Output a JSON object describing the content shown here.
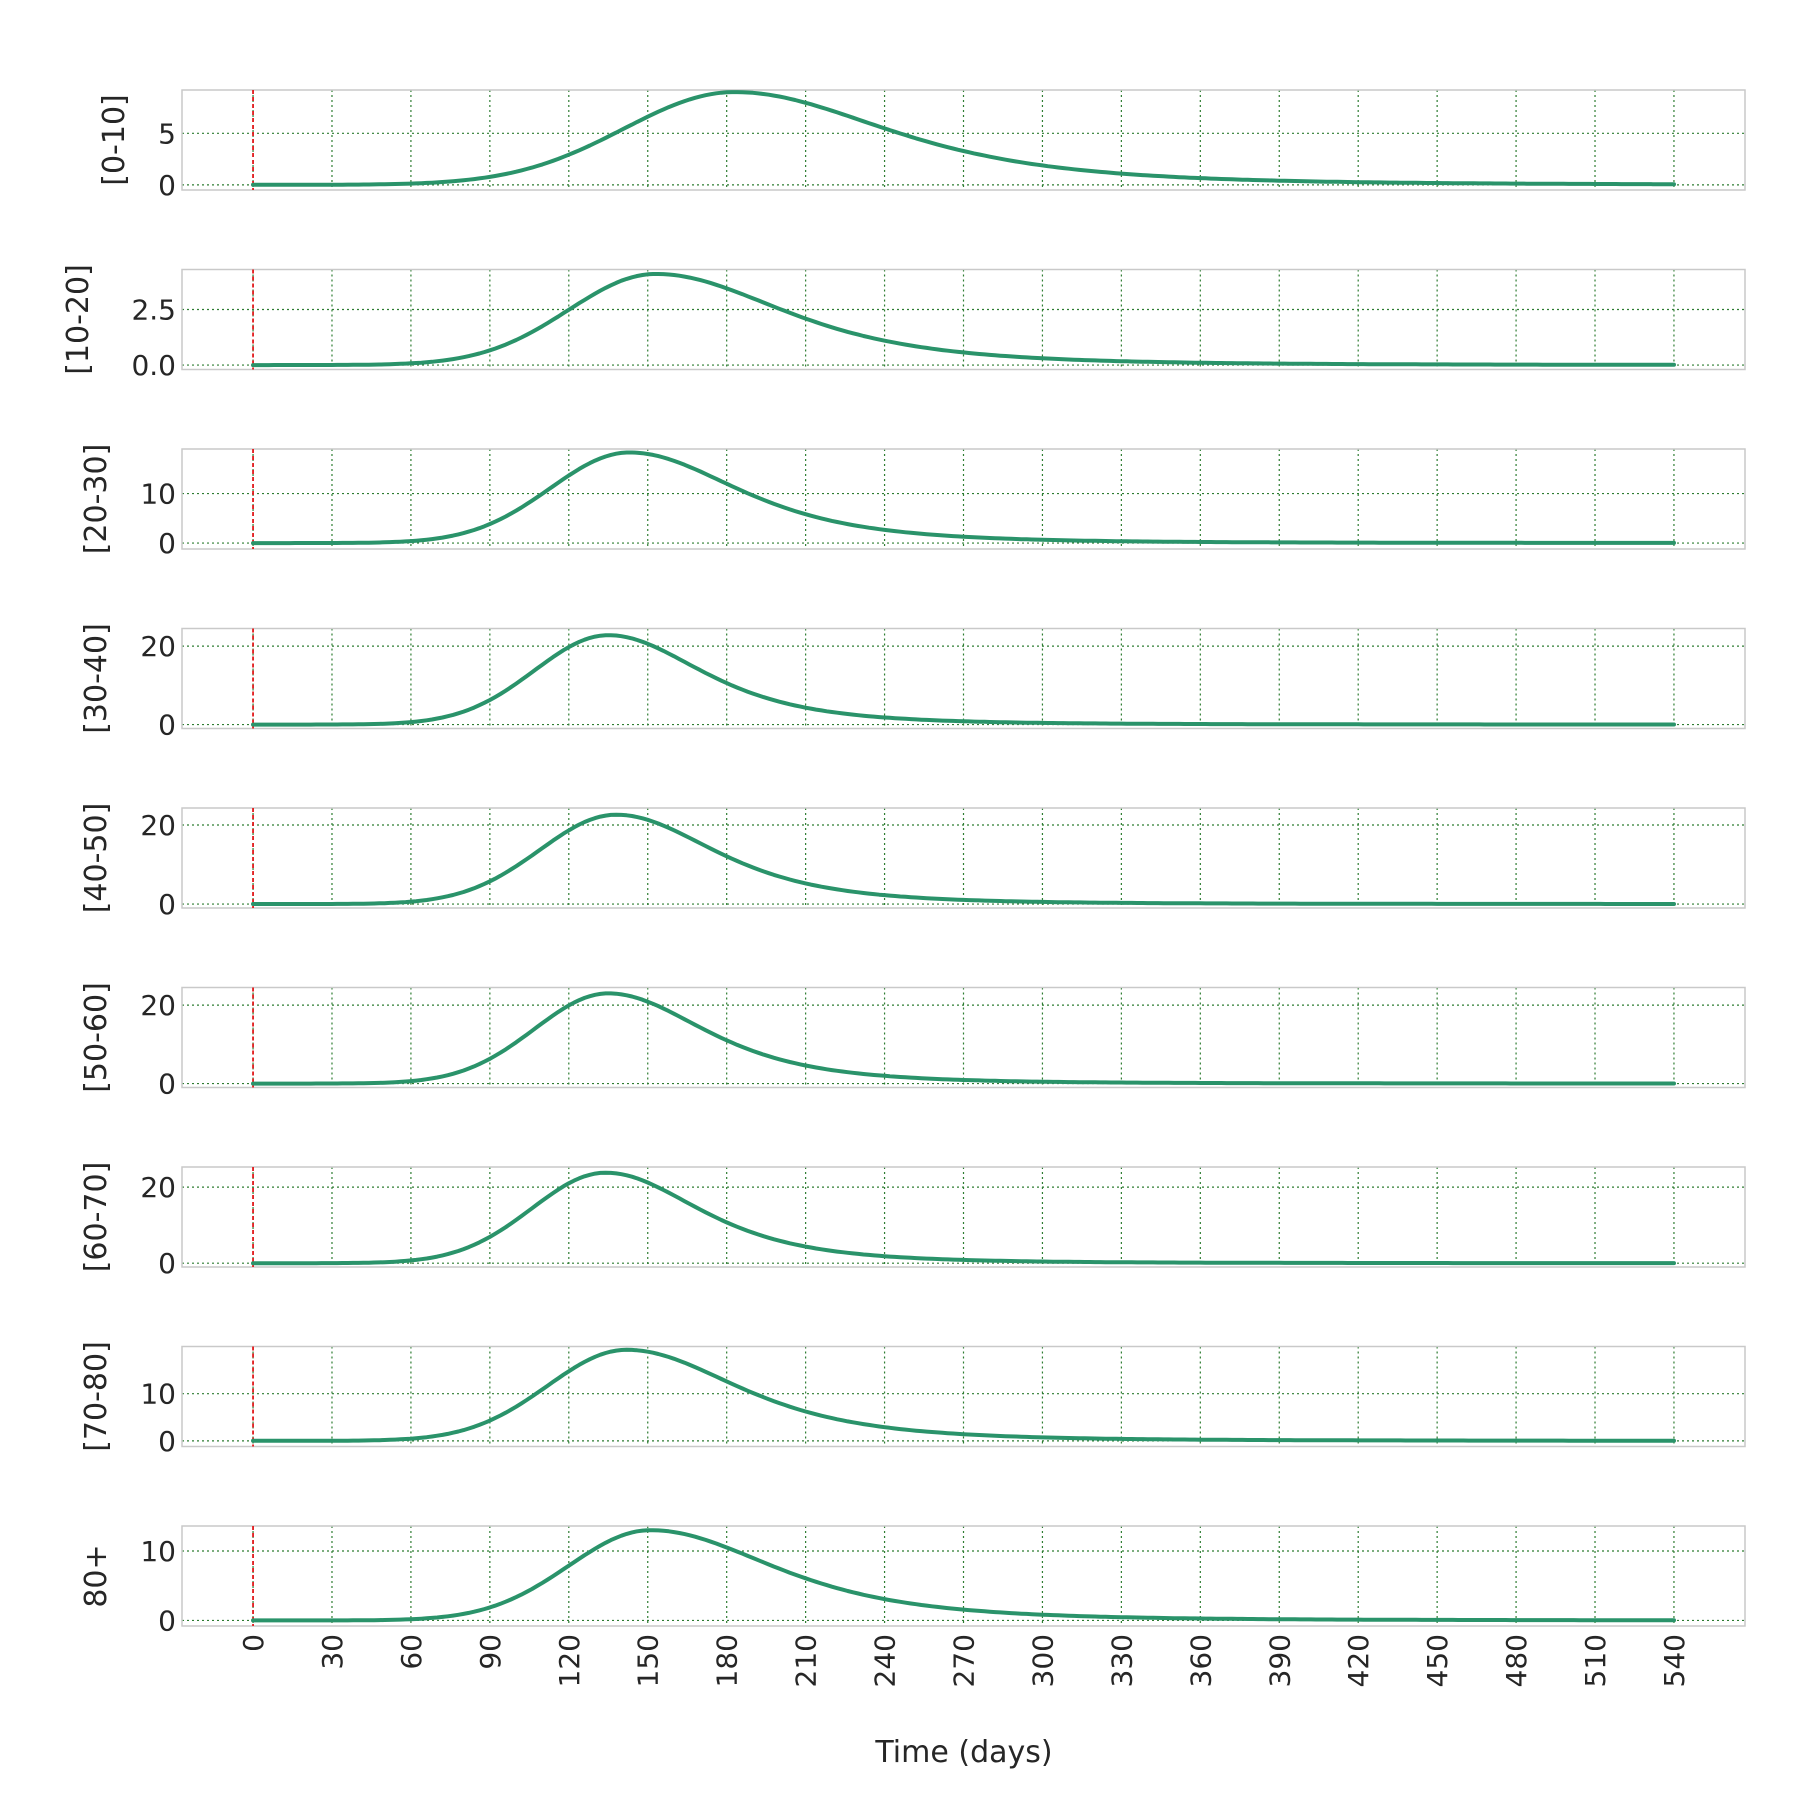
{
  "chart_data": {
    "type": "line",
    "xlabel": "Time (days)",
    "x_ticks": [
      0,
      30,
      60,
      90,
      120,
      150,
      180,
      210,
      240,
      270,
      300,
      330,
      360,
      390,
      420,
      450,
      480,
      510,
      540
    ],
    "xlim": [
      -27,
      567
    ],
    "x_range": [
      0,
      540
    ],
    "marker_x": 0,
    "grid": true,
    "colors": {
      "line": "#2a936a",
      "marker": "#e31a1c",
      "grid": "#2e7d32",
      "frame": "#c9c9c9"
    },
    "panels": [
      {
        "ylabel": "[0-10]",
        "ylim": [
          -0.5,
          9.2
        ],
        "yticks": [
          "0",
          "5"
        ],
        "ytick_values": [
          0,
          5
        ],
        "peak_x": 183,
        "peak_y": 9.0,
        "sigma_left": 42,
        "sigma_right": 62
      },
      {
        "ylabel": "[10-20]",
        "ylim": [
          -0.2,
          4.3
        ],
        "yticks": [
          "0.0",
          "2.5"
        ],
        "ytick_values": [
          0,
          2.5
        ],
        "peak_x": 153,
        "peak_y": 4.1,
        "sigma_left": 33,
        "sigma_right": 52
      },
      {
        "ylabel": "[20-30]",
        "ylim": [
          -1.2,
          19.0
        ],
        "yticks": [
          "0",
          "10"
        ],
        "ytick_values": [
          0,
          10
        ],
        "peak_x": 143,
        "peak_y": 18.3,
        "sigma_left": 30,
        "sigma_right": 44
      },
      {
        "ylabel": "[30-40]",
        "ylim": [
          -1.0,
          24.5
        ],
        "yticks": [
          "0",
          "20"
        ],
        "ytick_values": [
          0,
          20
        ],
        "peak_x": 135,
        "peak_y": 22.8,
        "sigma_left": 28,
        "sigma_right": 38
      },
      {
        "ylabel": "[40-50]",
        "ylim": [
          -1.0,
          24.3
        ],
        "yticks": [
          "0",
          "20"
        ],
        "ytick_values": [
          0,
          20
        ],
        "peak_x": 138,
        "peak_y": 22.6,
        "sigma_left": 29,
        "sigma_right": 40
      },
      {
        "ylabel": "[50-60]",
        "ylim": [
          -1.0,
          24.5
        ],
        "yticks": [
          "0",
          "20"
        ],
        "ytick_values": [
          0,
          20
        ],
        "peak_x": 135,
        "peak_y": 23.0,
        "sigma_left": 28,
        "sigma_right": 39
      },
      {
        "ylabel": "[60-70]",
        "ylim": [
          -1.0,
          25.3
        ],
        "yticks": [
          "0",
          "20"
        ],
        "ytick_values": [
          0,
          20
        ],
        "peak_x": 134,
        "peak_y": 23.8,
        "sigma_left": 28,
        "sigma_right": 38
      },
      {
        "ylabel": "[70-80]",
        "ylim": [
          -1.2,
          20.0
        ],
        "yticks": [
          "0",
          "10"
        ],
        "ytick_values": [
          0,
          10
        ],
        "peak_x": 142,
        "peak_y": 19.3,
        "sigma_left": 30,
        "sigma_right": 45
      },
      {
        "ylabel": "80+",
        "ylim": [
          -0.8,
          13.6
        ],
        "yticks": [
          "0",
          "10"
        ],
        "ytick_values": [
          0,
          10
        ],
        "peak_x": 151,
        "peak_y": 13.0,
        "sigma_left": 31,
        "sigma_right": 50
      }
    ]
  }
}
